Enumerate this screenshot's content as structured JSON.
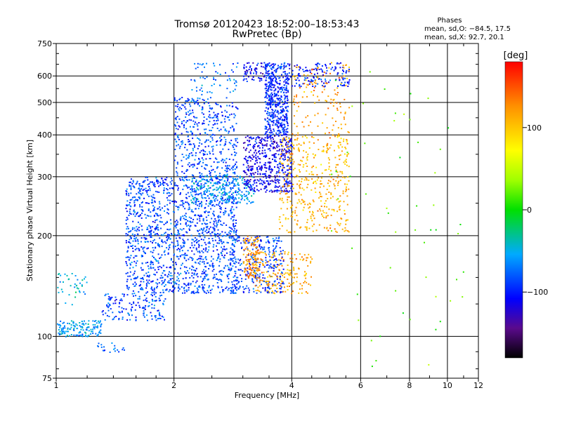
{
  "chart_data": {
    "type": "scatter",
    "title": "Tromsø 20120423 18:52:00–18:53:43",
    "subtitle": "RwPretec (Bp)",
    "xlabel": "Frequency [MHz]",
    "ylabel": "Stationary phase Virtual Height [km]",
    "x_scale": "log",
    "y_scale": "log",
    "xlim": [
      1,
      12
    ],
    "ylim": [
      75,
      750
    ],
    "x_ticks": [
      1,
      2,
      4,
      6,
      8,
      10,
      12
    ],
    "x_minor_ticks": [
      3,
      5,
      7,
      9,
      11
    ],
    "y_ticks": [
      75,
      100,
      200,
      300,
      400,
      500,
      600,
      750
    ],
    "y_minor_ticks": [
      150
    ],
    "grid": true,
    "phases_box": {
      "title": "Phases",
      "line1": "mean, sd,O: −84.5, 17.5",
      "line2": "mean, sd,X:  92.7, 20.1"
    },
    "colorbar": {
      "label": "[deg]",
      "range": [
        -180,
        180
      ],
      "ticks": [
        100,
        0,
        -100
      ],
      "tick_labels": [
        "100",
        "0",
        "−100"
      ]
    },
    "regions": [
      {
        "fmin": 1.0,
        "fmax": 1.3,
        "hmin": 100,
        "hmax": 112,
        "phase": -60,
        "count": 150
      },
      {
        "fmin": 1.0,
        "fmax": 1.2,
        "hmin": 125,
        "hmax": 155,
        "phase": -45,
        "count": 40
      },
      {
        "fmin": 1.25,
        "fmax": 1.5,
        "hmin": 90,
        "hmax": 96,
        "phase": -75,
        "count": 20
      },
      {
        "fmin": 1.3,
        "fmax": 1.9,
        "hmin": 112,
        "hmax": 135,
        "phase": -85,
        "count": 150
      },
      {
        "fmin": 1.5,
        "fmax": 2.9,
        "hmin": 135,
        "hmax": 300,
        "phase": -85,
        "count": 1500
      },
      {
        "fmin": 2.0,
        "fmax": 2.9,
        "hmin": 300,
        "hmax": 520,
        "phase": -85,
        "count": 450
      },
      {
        "fmin": 2.2,
        "fmax": 2.9,
        "hmin": 520,
        "hmax": 660,
        "phase": -70,
        "count": 60
      },
      {
        "fmin": 2.2,
        "fmax": 3.2,
        "hmin": 250,
        "hmax": 305,
        "phase": -55,
        "count": 220
      },
      {
        "fmin": 2.8,
        "fmax": 3.8,
        "hmin": 135,
        "hmax": 200,
        "phase": -90,
        "count": 300
      },
      {
        "fmin": 3.0,
        "fmax": 4.0,
        "hmin": 270,
        "hmax": 400,
        "phase": -110,
        "count": 500
      },
      {
        "fmin": 3.4,
        "fmax": 3.9,
        "hmin": 400,
        "hmax": 660,
        "phase": -95,
        "count": 500
      },
      {
        "fmin": 3.0,
        "fmax": 3.4,
        "hmin": 580,
        "hmax": 660,
        "phase": -110,
        "count": 60
      },
      {
        "fmin": 3.9,
        "fmax": 5.6,
        "hmin": 560,
        "hmax": 660,
        "phase": -100,
        "count": 150
      },
      {
        "fmin": 3.0,
        "fmax": 3.3,
        "hmin": 150,
        "hmax": 200,
        "phase": 125,
        "count": 120
      },
      {
        "fmin": 3.2,
        "fmax": 4.5,
        "hmin": 135,
        "hmax": 180,
        "phase": 115,
        "count": 180
      },
      {
        "fmin": 3.7,
        "fmax": 5.6,
        "hmin": 205,
        "hmax": 400,
        "phase": 110,
        "count": 420
      },
      {
        "fmin": 4.0,
        "fmax": 5.6,
        "hmin": 400,
        "hmax": 660,
        "phase": 120,
        "count": 130
      },
      {
        "fmin": 4.6,
        "fmax": 11.0,
        "hmin": 80,
        "hmax": 660,
        "phase": 20,
        "count": 55
      }
    ]
  }
}
